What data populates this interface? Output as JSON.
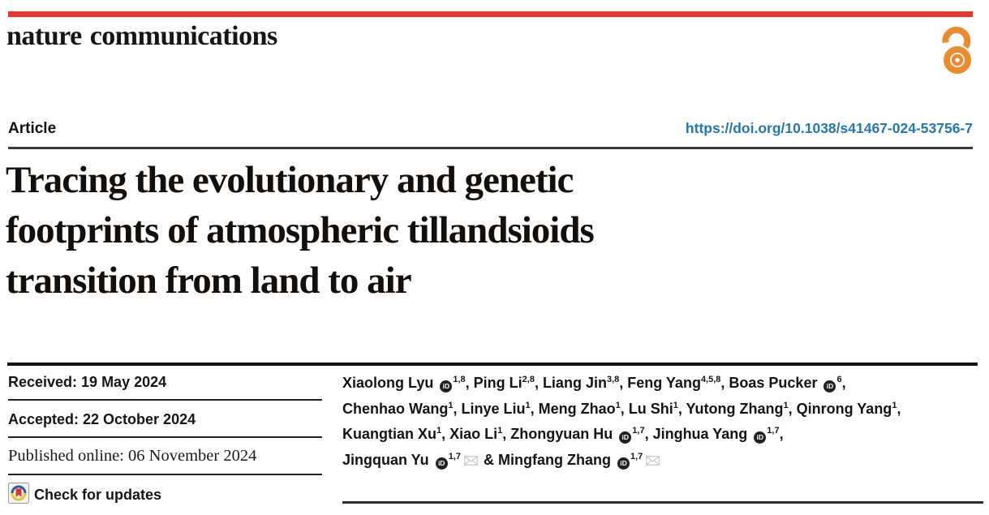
{
  "colors": {
    "brand_red": "#e23a2c",
    "link_blue": "#2577b2",
    "oa_orange": "#e98b2e",
    "crossmark_red": "#d8372a",
    "crossmark_blue": "#2c5e9e",
    "crossmark_yellow": "#e8c23a"
  },
  "masthead": {
    "journal": "nature communications"
  },
  "icons": {
    "open_access": "open-access-padlock",
    "orcid_glyph": "iD",
    "crossmark": "crossmark-badge",
    "email": "envelope"
  },
  "article_bar": {
    "type_label": "Article",
    "doi": "https://doi.org/10.1038/s41467-024-53756-7"
  },
  "title": {
    "full": "Tracing the evolutionary and genetic footprints of atmospheric tillandsioids transition from land to air",
    "lines": [
      "Tracing the evolutionary and genetic",
      "footprints of atmospheric tillandsioids",
      "transition from land to air"
    ]
  },
  "history": {
    "rows": [
      {
        "text": "Received: 19 May 2024"
      },
      {
        "text": "Accepted: 22 October 2024"
      },
      {
        "text": "Published online: 06 November 2024"
      }
    ]
  },
  "check_updates": {
    "label": "Check for updates"
  },
  "authors": {
    "lines": [
      [
        {
          "t": "Xiaolong Lyu "
        },
        {
          "icon": "orcid"
        },
        {
          "sup": "1,8"
        },
        {
          "t": ", Ping Li"
        },
        {
          "sup": "2,8"
        },
        {
          "t": ", Liang Jin"
        },
        {
          "sup": "3,8"
        },
        {
          "t": ", Feng Yang"
        },
        {
          "sup": "4,5,8"
        },
        {
          "t": ", Boas Pucker "
        },
        {
          "icon": "orcid"
        },
        {
          "sup": "6"
        },
        {
          "t": ","
        }
      ],
      [
        {
          "t": "Chenhao Wang"
        },
        {
          "sup": "1"
        },
        {
          "t": ", Linye Liu"
        },
        {
          "sup": "1"
        },
        {
          "t": ", Meng Zhao"
        },
        {
          "sup": "1"
        },
        {
          "t": ", Lu Shi"
        },
        {
          "sup": "1"
        },
        {
          "t": ", Yutong Zhang"
        },
        {
          "sup": "1"
        },
        {
          "t": ", Qinrong Yang"
        },
        {
          "sup": "1"
        },
        {
          "t": ","
        }
      ],
      [
        {
          "t": "Kuangtian Xu"
        },
        {
          "sup": "1"
        },
        {
          "t": ", Xiao Li"
        },
        {
          "sup": "1"
        },
        {
          "t": ", Zhongyuan Hu "
        },
        {
          "icon": "orcid"
        },
        {
          "sup": "1,7"
        },
        {
          "t": ", Jinghua Yang "
        },
        {
          "icon": "orcid"
        },
        {
          "sup": "1,7"
        },
        {
          "t": ","
        }
      ],
      [
        {
          "t": "Jingquan Yu "
        },
        {
          "icon": "orcid"
        },
        {
          "sup": "1,7"
        },
        {
          "icon": "envelope"
        },
        {
          "t": " & Mingfang Zhang "
        },
        {
          "icon": "orcid"
        },
        {
          "sup": "1,7"
        },
        {
          "icon": "envelope"
        }
      ]
    ]
  }
}
